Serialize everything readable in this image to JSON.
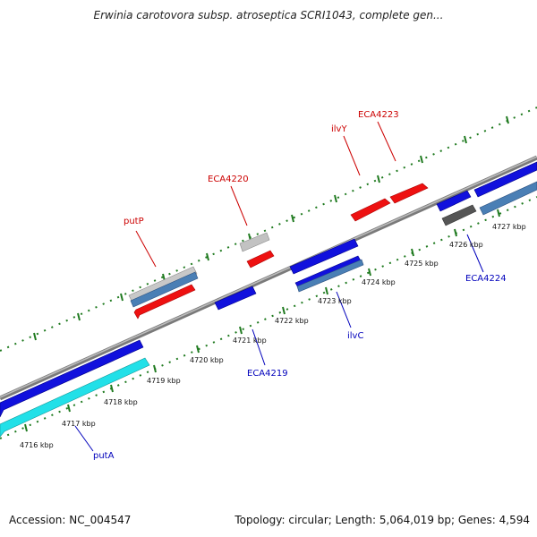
{
  "title": "Erwinia carotovora subsp. atroseptica SCRI1043, complete gen...",
  "footer": {
    "accession": "Accession: NC_004547",
    "summary": "Topology: circular; Length: 5,064,019 bp; Genes: 4,594"
  },
  "colors": {
    "backbone": "#888888",
    "ticks": "#1f7a1f",
    "forward_gene": "#ee1111",
    "reverse_gene": "#1111dd",
    "forward_label": "#cc0000",
    "reverse_label": "#0000bb",
    "cds_steel": "#4a7fb5",
    "rna_cyan": "#22e0e8",
    "grey_feature": "#bbbbbb",
    "dark_feature": "#555555"
  },
  "kbp_labels": [
    "4716 kbp",
    "4717 kbp",
    "4718 kbp",
    "4719 kbp",
    "4720 kbp",
    "4721 kbp",
    "4722 kbp",
    "4723 kbp",
    "4724 kbp",
    "4725 kbp",
    "4726 kbp",
    "4727 kbp"
  ],
  "forward_gene_labels": [
    "putP",
    "ECA4220",
    "ilvY",
    "ECA4223"
  ],
  "reverse_gene_labels": [
    "putA",
    "ECA4219",
    "ilvC",
    "ECA4224"
  ]
}
